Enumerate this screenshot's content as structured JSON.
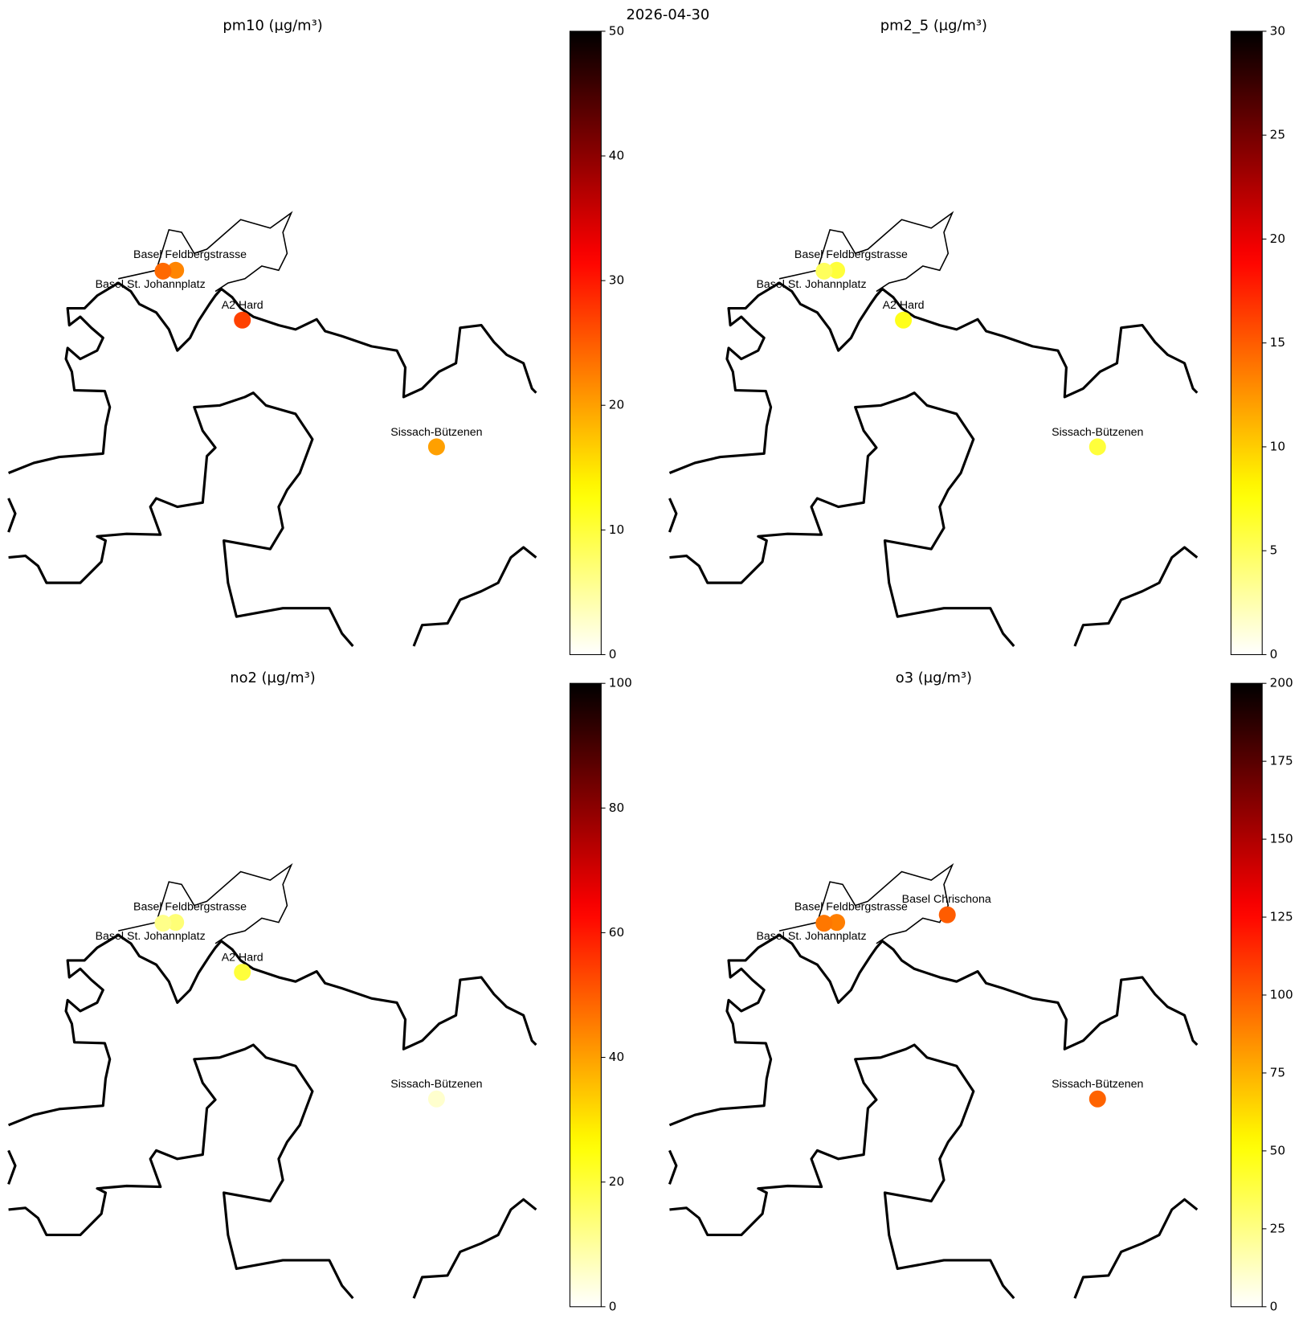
{
  "figure_title": "2026-04-30",
  "chart_data": [
    {
      "type": "map",
      "title": "pm10 (µg/m³)",
      "colormap": "hot_r",
      "categories": [
        "Basel Feldbergstrasse",
        "Basel St. Johannplatz",
        "A2 Hard",
        "Sissach-Bützenen"
      ],
      "values": [
        22,
        24,
        27,
        20
      ],
      "clim": [
        0,
        50
      ],
      "cticks": [
        0,
        10,
        20,
        30,
        40,
        50
      ]
    },
    {
      "type": "map",
      "title": "pm2_5 (µg/m³)",
      "colormap": "hot_r",
      "categories": [
        "Basel Feldbergstrasse",
        "Basel St. Johannplatz",
        "A2 Hard",
        "Sissach-Bützenen"
      ],
      "values": [
        6,
        5,
        7,
        6
      ],
      "clim": [
        0,
        30
      ],
      "cticks": [
        0,
        5,
        10,
        15,
        20,
        25,
        30
      ]
    },
    {
      "type": "map",
      "title": "no2 (µg/m³)",
      "colormap": "hot_r",
      "categories": [
        "Basel Feldbergstrasse",
        "Basel St. Johannplatz",
        "A2 Hard",
        "Sissach-Bützenen"
      ],
      "values": [
        14,
        12,
        20,
        5
      ],
      "clim": [
        0,
        100
      ],
      "cticks": [
        0,
        20,
        40,
        60,
        80,
        100
      ]
    },
    {
      "type": "map",
      "title": "o3 (µg/m³)",
      "colormap": "hot_r",
      "categories": [
        "Basel Feldbergstrasse",
        "Basel St. Johannplatz",
        "Basel Chrischona",
        "Sissach-Bützenen"
      ],
      "values": [
        90,
        92,
        100,
        98
      ],
      "clim": [
        0,
        200
      ],
      "cticks": [
        0,
        25,
        50,
        75,
        100,
        125,
        150,
        175,
        200
      ]
    }
  ]
}
